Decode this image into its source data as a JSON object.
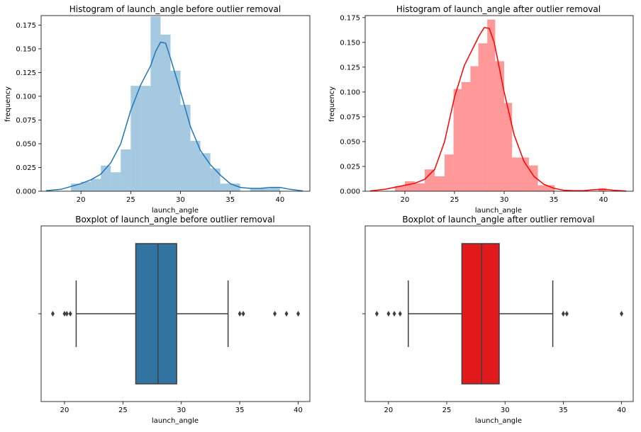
{
  "chart_data": [
    {
      "type": "bar",
      "kind": "histogram",
      "title": "Histogram of launch_angle before outlier removal",
      "xlabel": "launch_angle",
      "ylabel": "frequency",
      "xlim": [
        16,
        43
      ],
      "ylim": [
        0,
        0.185
      ],
      "xticks": [
        20,
        25,
        30,
        35,
        40
      ],
      "yticks": [
        0.0,
        0.025,
        0.05,
        0.075,
        0.1,
        0.125,
        0.15,
        0.175
      ],
      "color": "#1f77b4",
      "bar_alpha": 0.4,
      "bins": [
        {
          "x0": 19.0,
          "x1": 20.0,
          "value": 0.008
        },
        {
          "x0": 20.0,
          "x1": 21.0,
          "value": 0.01
        },
        {
          "x0": 21.0,
          "x1": 22.0,
          "value": 0.013
        },
        {
          "x0": 22.0,
          "x1": 23.0,
          "value": 0.027
        },
        {
          "x0": 23.0,
          "x1": 24.0,
          "value": 0.02
        },
        {
          "x0": 24.0,
          "x1": 25.0,
          "value": 0.044
        },
        {
          "x0": 25.0,
          "x1": 26.0,
          "value": 0.111
        },
        {
          "x0": 26.0,
          "x1": 27.0,
          "value": 0.111
        },
        {
          "x0": 27.0,
          "x1": 28.0,
          "value": 0.184
        },
        {
          "x0": 28.0,
          "x1": 29.0,
          "value": 0.165
        },
        {
          "x0": 29.0,
          "x1": 30.0,
          "value": 0.127
        },
        {
          "x0": 30.0,
          "x1": 31.0,
          "value": 0.091
        },
        {
          "x0": 31.0,
          "x1": 32.0,
          "value": 0.053
        },
        {
          "x0": 32.0,
          "x1": 33.0,
          "value": 0.04
        },
        {
          "x0": 33.0,
          "x1": 34.0,
          "value": 0.024
        },
        {
          "x0": 34.0,
          "x1": 35.0,
          "value": 0.008
        },
        {
          "x0": 35.0,
          "x1": 36.0,
          "value": 0.008
        },
        {
          "x0": 37.0,
          "x1": 38.0,
          "value": 0.003
        },
        {
          "x0": 38.0,
          "x1": 39.0,
          "value": 0.003
        },
        {
          "x0": 39.0,
          "x1": 40.0,
          "value": 0.004
        }
      ],
      "kde": [
        [
          16.5,
          0.0005
        ],
        [
          18,
          0.002
        ],
        [
          19,
          0.005
        ],
        [
          20,
          0.008
        ],
        [
          21,
          0.012
        ],
        [
          22,
          0.018
        ],
        [
          23,
          0.03
        ],
        [
          24,
          0.05
        ],
        [
          25,
          0.085
        ],
        [
          26,
          0.112
        ],
        [
          27,
          0.132
        ],
        [
          27.5,
          0.147
        ],
        [
          28,
          0.157
        ],
        [
          28.5,
          0.156
        ],
        [
          29,
          0.14
        ],
        [
          30,
          0.105
        ],
        [
          31,
          0.068
        ],
        [
          32,
          0.043
        ],
        [
          33,
          0.028
        ],
        [
          34,
          0.017
        ],
        [
          35,
          0.008
        ],
        [
          36,
          0.004
        ],
        [
          37,
          0.003
        ],
        [
          38,
          0.003
        ],
        [
          39,
          0.004
        ],
        [
          40,
          0.004
        ],
        [
          41,
          0.002
        ],
        [
          42.3,
          0.0003
        ]
      ]
    },
    {
      "type": "bar",
      "kind": "histogram",
      "title": "Histogram of launch_angle after outlier removal",
      "xlabel": "launch_angle",
      "ylabel": "frequency",
      "xlim": [
        16,
        43
      ],
      "ylim": [
        0,
        0.177
      ],
      "xticks": [
        20,
        25,
        30,
        35,
        40
      ],
      "yticks": [
        0.0,
        0.025,
        0.05,
        0.075,
        0.1,
        0.125,
        0.15,
        0.175
      ],
      "color": "#ff0000",
      "bar_alpha": 0.4,
      "bins": [
        {
          "x0": 19.0,
          "x1": 20.0,
          "value": 0.005
        },
        {
          "x0": 20.0,
          "x1": 21.0,
          "value": 0.01
        },
        {
          "x0": 21.0,
          "x1": 22.0,
          "value": 0.008
        },
        {
          "x0": 22.0,
          "x1": 23.0,
          "value": 0.022
        },
        {
          "x0": 23.0,
          "x1": 24.0,
          "value": 0.015
        },
        {
          "x0": 24.0,
          "x1": 24.9,
          "value": 0.037
        },
        {
          "x0": 24.9,
          "x1": 25.7,
          "value": 0.103
        },
        {
          "x0": 25.7,
          "x1": 26.6,
          "value": 0.11
        },
        {
          "x0": 26.6,
          "x1": 27.4,
          "value": 0.126
        },
        {
          "x0": 27.4,
          "x1": 28.3,
          "value": 0.149
        },
        {
          "x0": 28.3,
          "x1": 29.1,
          "value": 0.173
        },
        {
          "x0": 29.1,
          "x1": 30.0,
          "value": 0.131
        },
        {
          "x0": 30.0,
          "x1": 30.8,
          "value": 0.089
        },
        {
          "x0": 30.8,
          "x1": 31.7,
          "value": 0.034
        },
        {
          "x0": 31.7,
          "x1": 32.5,
          "value": 0.034
        },
        {
          "x0": 32.5,
          "x1": 33.4,
          "value": 0.026
        },
        {
          "x0": 33.4,
          "x1": 34.2,
          "value": 0.006
        },
        {
          "x0": 34.2,
          "x1": 35.1,
          "value": 0.006
        },
        {
          "x0": 39.5,
          "x1": 40.3,
          "value": 0.003
        }
      ],
      "kde": [
        [
          16.5,
          0.0003
        ],
        [
          18,
          0.002
        ],
        [
          19,
          0.004
        ],
        [
          20,
          0.006
        ],
        [
          21,
          0.008
        ],
        [
          22,
          0.012
        ],
        [
          23,
          0.022
        ],
        [
          24,
          0.05
        ],
        [
          25,
          0.095
        ],
        [
          26,
          0.127
        ],
        [
          27,
          0.147
        ],
        [
          27.5,
          0.157
        ],
        [
          28,
          0.165
        ],
        [
          28.5,
          0.164
        ],
        [
          29,
          0.15
        ],
        [
          30,
          0.1
        ],
        [
          31,
          0.057
        ],
        [
          32,
          0.03
        ],
        [
          33,
          0.015
        ],
        [
          34,
          0.007
        ],
        [
          35,
          0.003
        ],
        [
          36,
          0.001
        ],
        [
          37,
          0.0005
        ],
        [
          38,
          0.0005
        ],
        [
          39,
          0.0015
        ],
        [
          40,
          0.002
        ],
        [
          41,
          0.001
        ],
        [
          42.3,
          0.0002
        ]
      ]
    },
    {
      "type": "boxplot",
      "title": "Boxplot of launch_angle before outlier removal",
      "xlabel": "launch_angle",
      "xlim": [
        18,
        41
      ],
      "xticks": [
        20,
        25,
        30,
        35,
        40
      ],
      "color": "#3274a1",
      "q1": 26.1,
      "median": 28.0,
      "q3": 29.6,
      "whisker_low": 21.0,
      "whisker_high": 34.0,
      "outliers": [
        19.0,
        20.0,
        20.2,
        20.5,
        35.0,
        35.3,
        38.0,
        39.0,
        40.0
      ]
    },
    {
      "type": "boxplot",
      "title": "Boxplot of launch_angle after outlier removal",
      "xlabel": "launch_angle",
      "xlim": [
        18,
        41
      ],
      "xticks": [
        20,
        25,
        30,
        35,
        40
      ],
      "color": "#e31a1c",
      "q1": 26.3,
      "median": 28.0,
      "q3": 29.5,
      "whisker_low": 21.7,
      "whisker_high": 34.1,
      "outliers": [
        19.0,
        20.0,
        20.5,
        21.0,
        35.0,
        35.3,
        40.0
      ]
    }
  ]
}
